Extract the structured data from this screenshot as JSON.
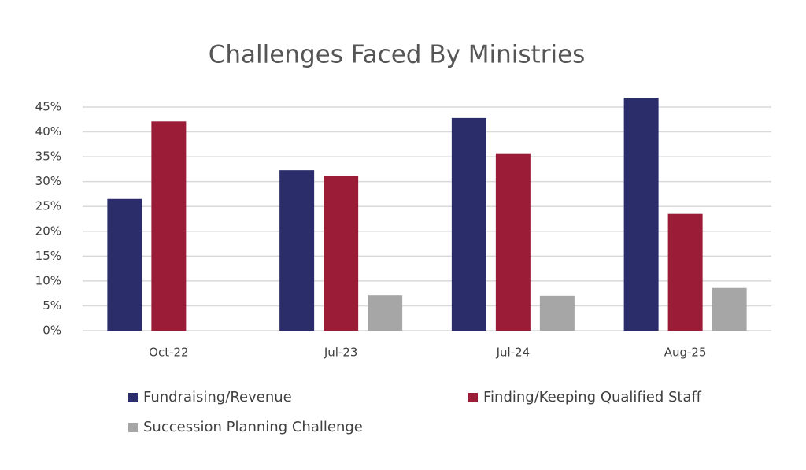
{
  "chart_data": {
    "type": "bar",
    "title": "Challenges Faced By Ministries",
    "categories": [
      "Oct-22",
      "Jul-23",
      "Jul-24",
      "Aug-25"
    ],
    "series": [
      {
        "name": "Fundraising/Revenue",
        "color": "#2b2d6b",
        "values": [
          26.5,
          32.3,
          42.8,
          46.9
        ]
      },
      {
        "name": "Finding/Keeping Qualified Staff",
        "color": "#9a1c37",
        "values": [
          42.1,
          31.1,
          35.7,
          23.5
        ]
      },
      {
        "name": "Succession Planning Challenge",
        "color": "#a6a6a6",
        "values": [
          null,
          7.1,
          7.0,
          8.6
        ]
      }
    ],
    "ylim": [
      0,
      45
    ],
    "yticks": [
      {
        "value": 0,
        "label": "0%"
      },
      {
        "value": 5,
        "label": "5%"
      },
      {
        "value": 10,
        "label": "10%"
      },
      {
        "value": 15,
        "label": "15%"
      },
      {
        "value": 20,
        "label": "20%"
      },
      {
        "value": 25,
        "label": "25%"
      },
      {
        "value": 30,
        "label": "30%"
      },
      {
        "value": 35,
        "label": "35%"
      },
      {
        "value": 40,
        "label": "40%"
      },
      {
        "value": 45,
        "label": "45%"
      }
    ],
    "grid": true
  }
}
